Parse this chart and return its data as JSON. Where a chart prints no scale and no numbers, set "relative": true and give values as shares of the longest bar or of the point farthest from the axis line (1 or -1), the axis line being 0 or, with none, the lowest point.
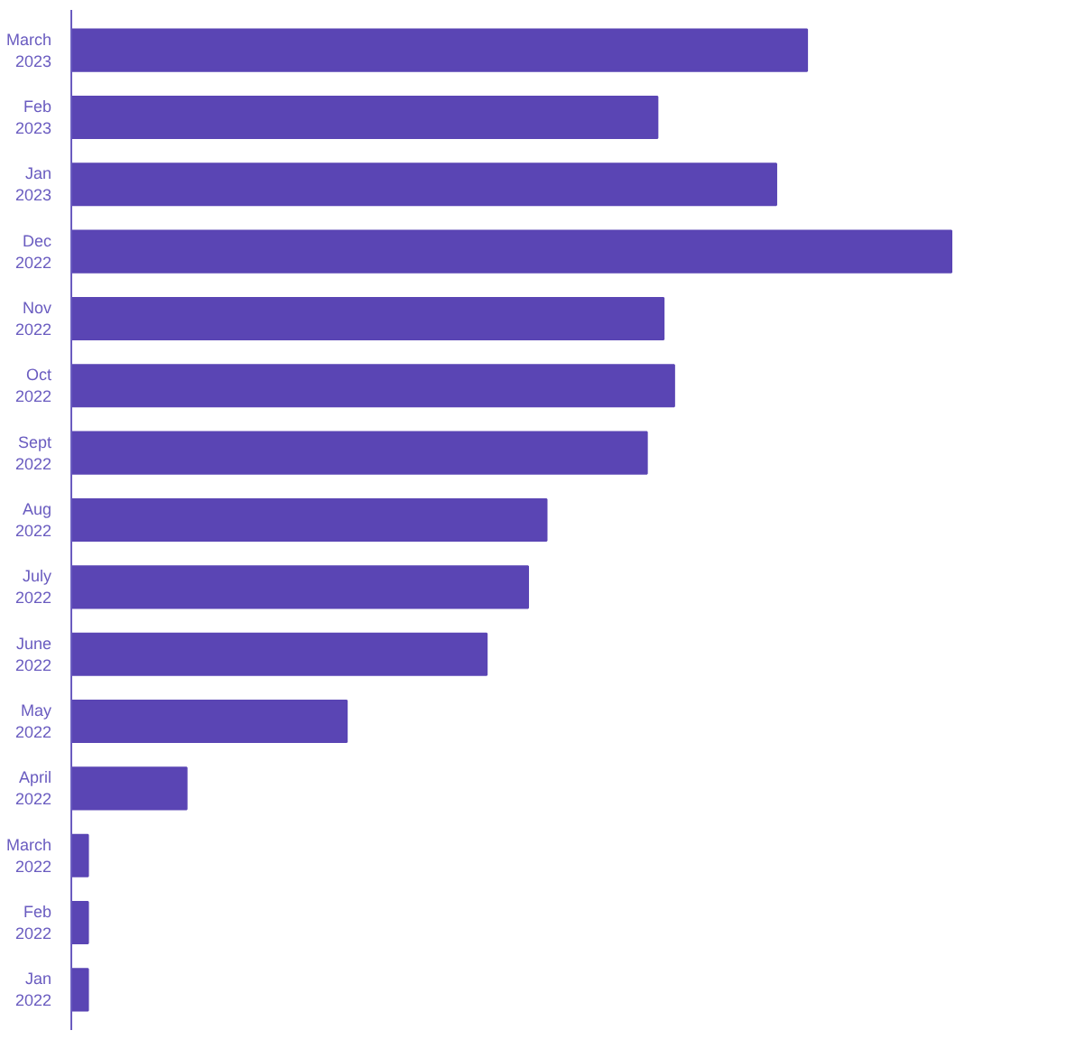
{
  "chart_data": {
    "type": "bar",
    "orientation": "horizontal",
    "relative": true,
    "categories": [
      "March\n2023",
      "Feb\n2023",
      "Jan\n2023",
      "Dec\n2022",
      "Nov\n2022",
      "Oct\n2022",
      "Sept\n2022",
      "Aug\n2022",
      "July\n2022",
      "June\n2022",
      "May\n2022",
      "April\n2022",
      "March\n2022",
      "Feb\n2022",
      "Jan\n2022"
    ],
    "values": [
      0.836,
      0.666,
      0.801,
      1,
      0.673,
      0.685,
      0.654,
      0.54,
      0.519,
      0.472,
      0.313,
      0.131,
      0.019,
      0.019,
      0.019
    ],
    "color": "#5a45b4"
  }
}
